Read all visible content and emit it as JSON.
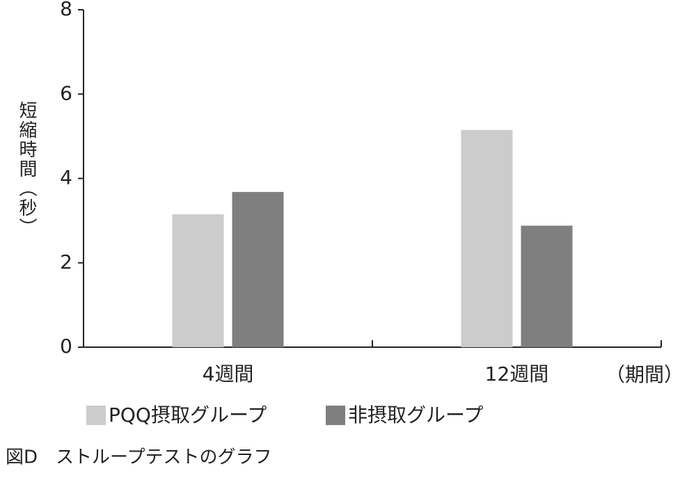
{
  "chart_data": {
    "type": "bar",
    "y_label": "短縮時間（秒）",
    "x_label": "（期間）",
    "caption": "図D　ストループテストのグラフ",
    "categories": [
      "4週間",
      "12週間"
    ],
    "series": [
      {
        "name": "PQQ摂取グループ",
        "color": "#cccccc",
        "values": [
          3.15,
          5.15
        ]
      },
      {
        "name": "非摂取グループ",
        "color": "#7f7f7f",
        "values": [
          3.68,
          2.88
        ]
      }
    ],
    "ylim": [
      0,
      8
    ],
    "yticks": [
      0,
      2,
      4,
      6,
      8
    ]
  }
}
